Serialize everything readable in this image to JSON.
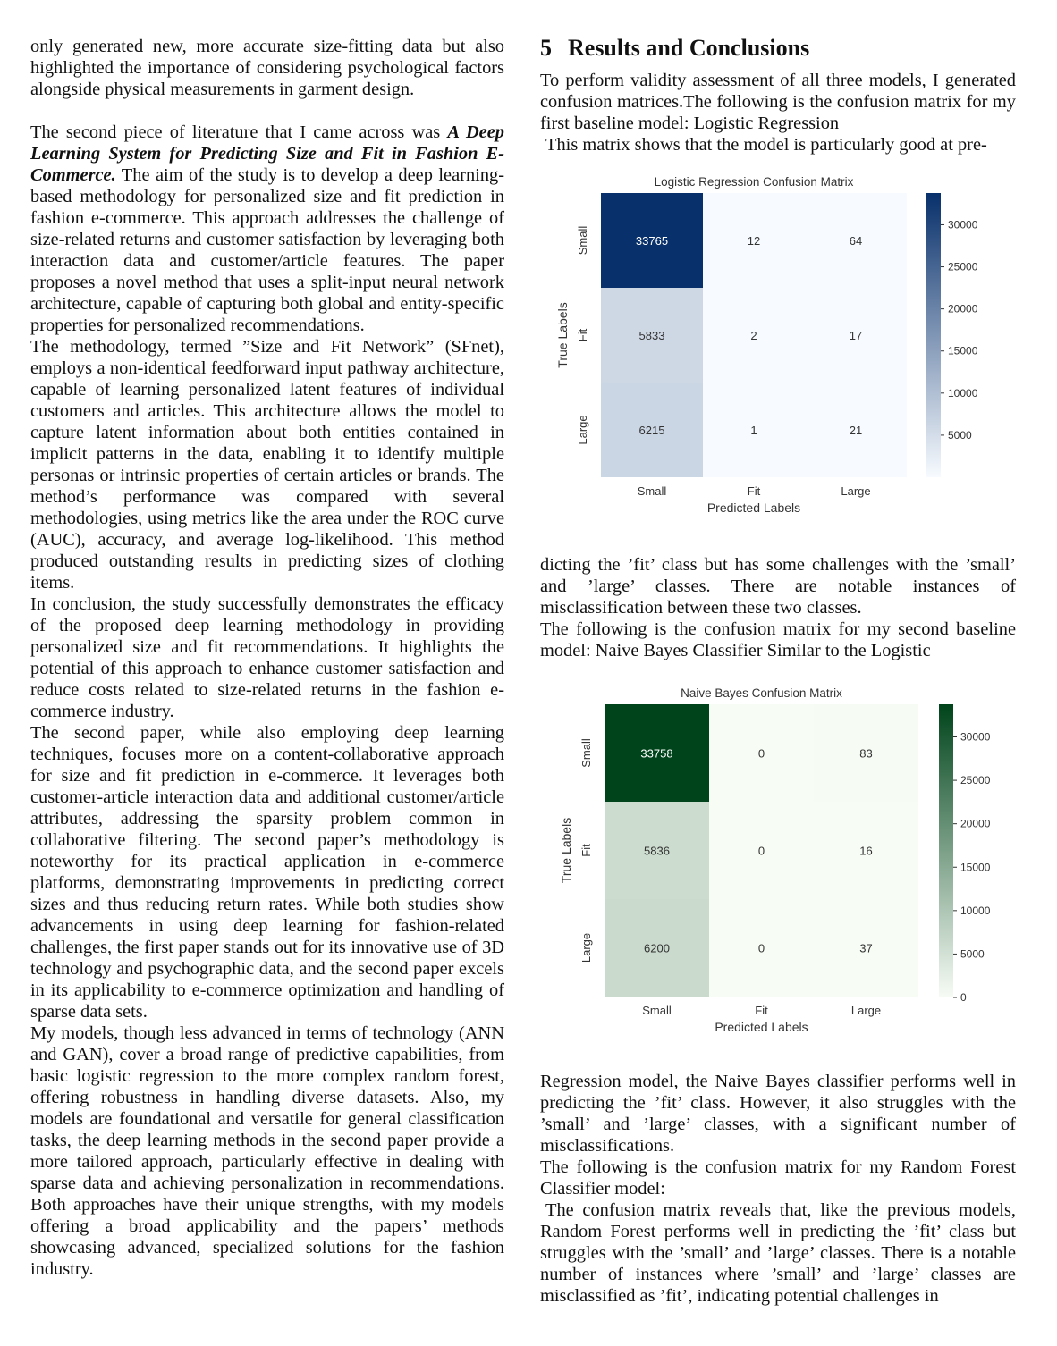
{
  "left_column": {
    "p1": "only generated new, more accurate size-fitting data but also highlighted the importance of considering psychological factors alongside physical measurements in garment design.",
    "p2_lead": "The second piece of literature that I came across was ",
    "p2_title": "A Deep Learning System for Predicting Size and Fit in Fashion E-Commerce.",
    "p2_rest": " The aim of the study is to develop a deep learning-based methodology for personalized size and fit prediction in fashion e-commerce. This approach addresses the challenge of size-related returns and customer satisfaction by leveraging both interaction data and customer/article features. The paper proposes a novel method that uses a split-input neural network architecture, capable of capturing both global and entity-specific properties for personalized recommendations.",
    "p3": "The methodology, termed ”Size and Fit Network” (SFnet), employs a non-identical feedforward input pathway architecture, capable of learning personalized latent features of individual customers and articles. This architecture allows the model to capture latent information about both entities contained in implicit patterns in the data, enabling it to identify multiple personas or intrinsic properties of certain articles or brands. The method’s performance was compared with several methodologies, using metrics like the area under the ROC curve (AUC), accuracy, and average log-likelihood. This method produced outstanding results in predicting sizes of clothing items.",
    "p4": "In conclusion, the study successfully demonstrates the efficacy of the proposed deep learning methodology in providing personalized size and fit recommendations. It highlights the potential of this approach to enhance customer satisfaction and reduce costs related to size-related returns in the fashion e-commerce industry.",
    "p5": "The second paper, while also employing deep learning techniques, focuses more on a content-collaborative approach for size and fit prediction in e-commerce. It leverages both customer-article interaction data and additional customer/article attributes, addressing the sparsity problem common in collaborative filtering. The second paper’s methodology is noteworthy for its practical application in e-commerce platforms, demonstrating improvements in predicting correct sizes and thus reducing return rates. While both studies show advancements in using deep learning for fashion-related challenges, the first paper stands out for its innovative use of 3D technology and psychographic data, and the second paper excels in its applicability to e-commerce optimization and handling of sparse data sets.",
    "p6": "My models, though less advanced in terms of technology (ANN and GAN), cover a broad range of predictive capabilities, from basic logistic regression to the more complex random forest, offering robustness in handling diverse datasets. Also, my models are foundational and versatile for general classification tasks, the deep learning methods in the second paper provide a more tailored approach, particularly effective in dealing with sparse data and achieving personalization in recommendations. Both approaches have their unique strengths, with my models offering a broad applicability and the papers’ methods showcasing advanced, specialized solutions for the fashion industry."
  },
  "right_column": {
    "section_number": "5",
    "section_title": "Results and Conclusions",
    "p1": "To perform validity assessment of all three models, I generated confusion matrices.The following is the confusion matrix for my first baseline model: Logistic Regression",
    "p2": "This matrix shows that the model is particularly good at pre-",
    "p3": "dicting the ’fit’ class but has some challenges with the ’small’ and ’large’ classes. There are notable instances of misclassification between these two classes.",
    "p4": "The following is the confusion matrix for my second baseline model: Naive Bayes Classifier Similar to the Logistic",
    "p5": "Regression model, the Naive Bayes classifier performs well in predicting the ’fit’ class. However, it also struggles with the ’small’ and ’large’ classes, with a significant number of misclassifications.",
    "p6": "The following is the confusion matrix for my Random Forest Classifier model:",
    "p7": "The confusion matrix reveals that, like the previous models, Random Forest performs well in predicting the ’fit’ class but struggles with the ’small’ and ’large’ classes. There is a notable number of instances where ’small’ and ’large’ classes are misclassified as ’fit’, indicating potential challenges in"
  },
  "chart_data": [
    {
      "type": "heatmap",
      "title": "Logistic Regression Confusion Matrix",
      "xlabel": "Predicted Labels",
      "ylabel": "True Labels",
      "x_categories": [
        "Small",
        "Fit",
        "Large"
      ],
      "y_categories": [
        "Small",
        "Fit",
        "Large"
      ],
      "values": [
        [
          33765,
          12,
          64
        ],
        [
          5833,
          2,
          17
        ],
        [
          6215,
          1,
          21
        ]
      ],
      "colorbar_ticks": [
        5000,
        10000,
        15000,
        20000,
        25000,
        30000
      ],
      "colorbar_range": [
        0,
        33765
      ],
      "colormap": [
        "#f7fbff",
        "#08306b"
      ]
    },
    {
      "type": "heatmap",
      "title": "Naive Bayes Confusion Matrix",
      "xlabel": "Predicted Labels",
      "ylabel": "True Labels",
      "x_categories": [
        "Small",
        "Fit",
        "Large"
      ],
      "y_categories": [
        "Small",
        "Fit",
        "Large"
      ],
      "values": [
        [
          33758,
          0,
          83
        ],
        [
          5836,
          0,
          16
        ],
        [
          6200,
          0,
          37
        ]
      ],
      "colorbar_ticks": [
        0,
        5000,
        10000,
        15000,
        20000,
        25000,
        30000
      ],
      "colorbar_range": [
        0,
        33758
      ],
      "colormap": [
        "#f7fcf5",
        "#00441b"
      ]
    }
  ]
}
